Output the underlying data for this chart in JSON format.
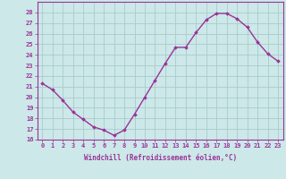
{
  "x": [
    0,
    1,
    2,
    3,
    4,
    5,
    6,
    7,
    8,
    9,
    10,
    11,
    12,
    13,
    14,
    15,
    16,
    17,
    18,
    19,
    20,
    21,
    22,
    23
  ],
  "y": [
    21.3,
    20.7,
    19.7,
    18.6,
    17.9,
    17.2,
    16.9,
    16.4,
    16.9,
    18.4,
    20.0,
    21.6,
    23.2,
    24.7,
    24.7,
    26.1,
    27.3,
    27.9,
    27.9,
    27.4,
    26.6,
    25.2,
    24.1,
    23.4
  ],
  "xlim": [
    -0.5,
    23.5
  ],
  "ylim": [
    16,
    29
  ],
  "yticks": [
    16,
    17,
    18,
    19,
    20,
    21,
    22,
    23,
    24,
    25,
    26,
    27,
    28
  ],
  "xticks": [
    0,
    1,
    2,
    3,
    4,
    5,
    6,
    7,
    8,
    9,
    10,
    11,
    12,
    13,
    14,
    15,
    16,
    17,
    18,
    19,
    20,
    21,
    22,
    23
  ],
  "xlabel": "Windchill (Refroidissement éolien,°C)",
  "line_color": "#993399",
  "marker": "D",
  "marker_size": 1.8,
  "bg_color": "#cce8e8",
  "grid_color": "#aacccc",
  "tick_color": "#993399",
  "label_color": "#993399",
  "linewidth": 1.0,
  "tick_fontsize": 5.0,
  "ylabel_fontsize": 5.0,
  "xlabel_fontsize": 5.5
}
